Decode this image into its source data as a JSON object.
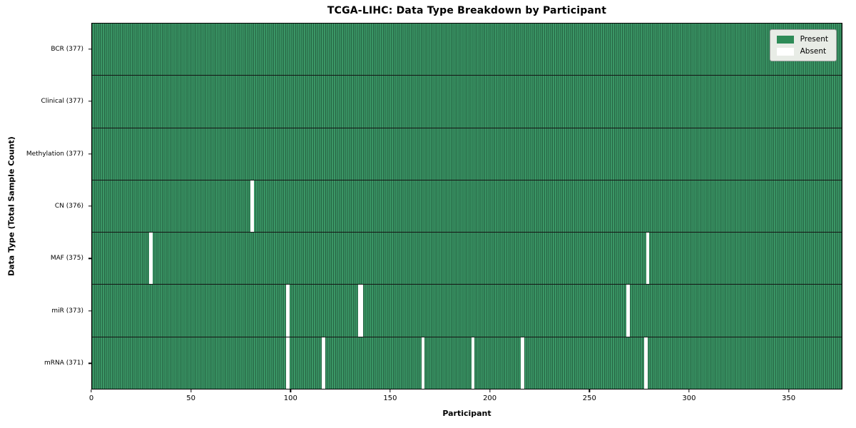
{
  "chart_data": {
    "type": "heatmap",
    "title": "TCGA-LIHC: Data Type Breakdown by Participant",
    "xlabel": "Participant",
    "ylabel": "Data Type (Total Sample Count)",
    "xlim": [
      0,
      377
    ],
    "n_participants": 377,
    "x_ticks": [
      0,
      50,
      100,
      150,
      200,
      250,
      300,
      350
    ],
    "grid": "cell-edges-only",
    "legend": {
      "position": "upper right",
      "present_label": "Present",
      "absent_label": "Absent"
    },
    "colors": {
      "present": "#2e8b57",
      "present_cell_fill": "#3a9766",
      "cell_edge": "rgba(0,0,0,0.35)",
      "absent": "#ffffff",
      "row_divider": "#141414",
      "legend_background": "#e8ece6",
      "figure_background": "#ffffff"
    },
    "rows": [
      {
        "id": "bcr",
        "label": "BCR (377)",
        "data_type": "BCR",
        "present_count": 377,
        "absent_participants": []
      },
      {
        "id": "clinical",
        "label": "Clinical (377)",
        "data_type": "Clinical",
        "present_count": 377,
        "absent_participants": []
      },
      {
        "id": "methylation",
        "label": "Methylation (377)",
        "data_type": "Methylation",
        "present_count": 377,
        "absent_participants": []
      },
      {
        "id": "cn",
        "label": "CN (376)",
        "data_type": "CN",
        "present_count": 376,
        "absent_participants": [
          80
        ]
      },
      {
        "id": "maf",
        "label": "MAF (375)",
        "data_type": "MAF",
        "present_count": 375,
        "absent_participants": [
          29,
          279
        ]
      },
      {
        "id": "mir",
        "label": "miR (373)",
        "data_type": "miR",
        "present_count": 373,
        "absent_participants": [
          98,
          134,
          135,
          269
        ]
      },
      {
        "id": "mrna",
        "label": "mRNA (371)",
        "data_type": "mRNA",
        "present_count": 371,
        "absent_participants": [
          98,
          116,
          166,
          191,
          216,
          278
        ]
      }
    ]
  }
}
